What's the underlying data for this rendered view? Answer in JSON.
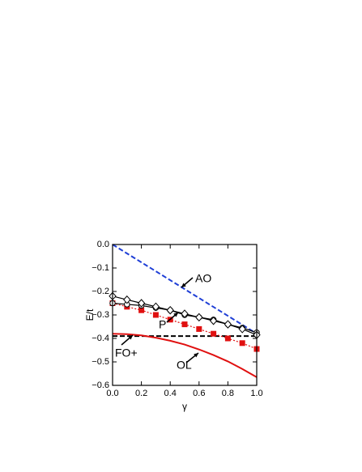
{
  "chart_data": {
    "type": "line",
    "x_label": "γ",
    "y_label": "E/t",
    "xlim": [
      0,
      1
    ],
    "ylim": [
      -0.6,
      0
    ],
    "xticks": [
      {
        "value": 0,
        "label": "0.0"
      },
      {
        "value": 0.2,
        "label": "0.2"
      },
      {
        "value": 0.4,
        "label": "0.4"
      },
      {
        "value": 0.6,
        "label": "0.6"
      },
      {
        "value": 0.8,
        "label": "0.8"
      },
      {
        "value": 1,
        "label": "1.0"
      }
    ],
    "yticks": [
      {
        "value": -0.6,
        "label": "−0.6"
      },
      {
        "value": -0.5,
        "label": "−0.5"
      },
      {
        "value": -0.4,
        "label": "−0.4"
      },
      {
        "value": -0.3,
        "label": "−0.3"
      },
      {
        "value": -0.2,
        "label": "−0.2"
      },
      {
        "value": -0.1,
        "label": "−0.1"
      },
      {
        "value": 0,
        "label": "0.0"
      }
    ],
    "series": [
      {
        "color": "#1f3fd6",
        "dash": "dashed",
        "marker": "none",
        "x": [
          0,
          1
        ],
        "values": [
          0,
          -0.38
        ]
      },
      {
        "color": "#000000",
        "dash": "dashed",
        "marker": "none",
        "x": [
          0,
          1
        ],
        "values": [
          -0.39,
          -0.39
        ]
      },
      {
        "color": "#e01010",
        "dash": "solid",
        "marker": "none",
        "x": [
          0,
          0.1,
          0.2,
          0.3,
          0.4,
          0.5,
          0.6,
          0.7,
          0.8,
          0.9,
          1
        ],
        "values": [
          -0.38,
          -0.382,
          -0.387,
          -0.397,
          -0.41,
          -0.426,
          -0.447,
          -0.471,
          -0.498,
          -0.53,
          -0.565
        ]
      },
      {
        "color": "#e01010",
        "dash": "dotted",
        "marker": "square",
        "x": [
          0,
          0.1,
          0.2,
          0.3,
          0.4,
          0.5,
          0.6,
          0.7,
          0.8,
          0.9,
          1
        ],
        "values": [
          -0.25,
          -0.265,
          -0.28,
          -0.3,
          -0.32,
          -0.34,
          -0.36,
          -0.38,
          -0.4,
          -0.42,
          -0.445
        ]
      },
      {
        "color": "#000000",
        "dash": "solid",
        "marker": "circle",
        "x": [
          0,
          0.1,
          0.2,
          0.3,
          0.4,
          0.5,
          0.6,
          0.7,
          0.8,
          0.9,
          1
        ],
        "values": [
          -0.25,
          -0.255,
          -0.26,
          -0.27,
          -0.28,
          -0.3,
          -0.31,
          -0.32,
          -0.34,
          -0.355,
          -0.375
        ]
      },
      {
        "color": "#000000",
        "dash": "solid",
        "marker": "diamond",
        "x": [
          0,
          0.1,
          0.2,
          0.3,
          0.4,
          0.5,
          0.6,
          0.7,
          0.8,
          0.9,
          1
        ],
        "values": [
          -0.22,
          -0.235,
          -0.25,
          -0.265,
          -0.28,
          -0.295,
          -0.31,
          -0.325,
          -0.34,
          -0.36,
          -0.385
        ]
      }
    ],
    "annotations": [
      "AO",
      "P",
      "FO+",
      "OL"
    ]
  }
}
